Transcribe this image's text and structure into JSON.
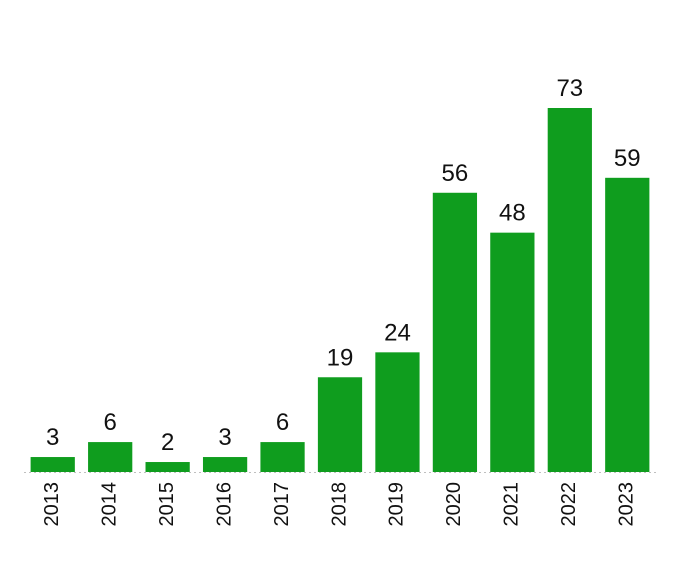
{
  "chart_data": {
    "type": "bar",
    "categories": [
      "2013",
      "2014",
      "2015",
      "2016",
      "2017",
      "2018",
      "2019",
      "2020",
      "2021",
      "2022",
      "2023"
    ],
    "values": [
      3,
      6,
      2,
      3,
      6,
      19,
      24,
      56,
      48,
      73,
      59
    ],
    "title": "",
    "xlabel": "",
    "ylabel": "",
    "ylim": [
      0,
      73
    ],
    "colors": {
      "bar": "#0f9d1e"
    },
    "grid": false,
    "legend": "none",
    "data_labels": true,
    "tick_label_rotation": "vertical"
  }
}
